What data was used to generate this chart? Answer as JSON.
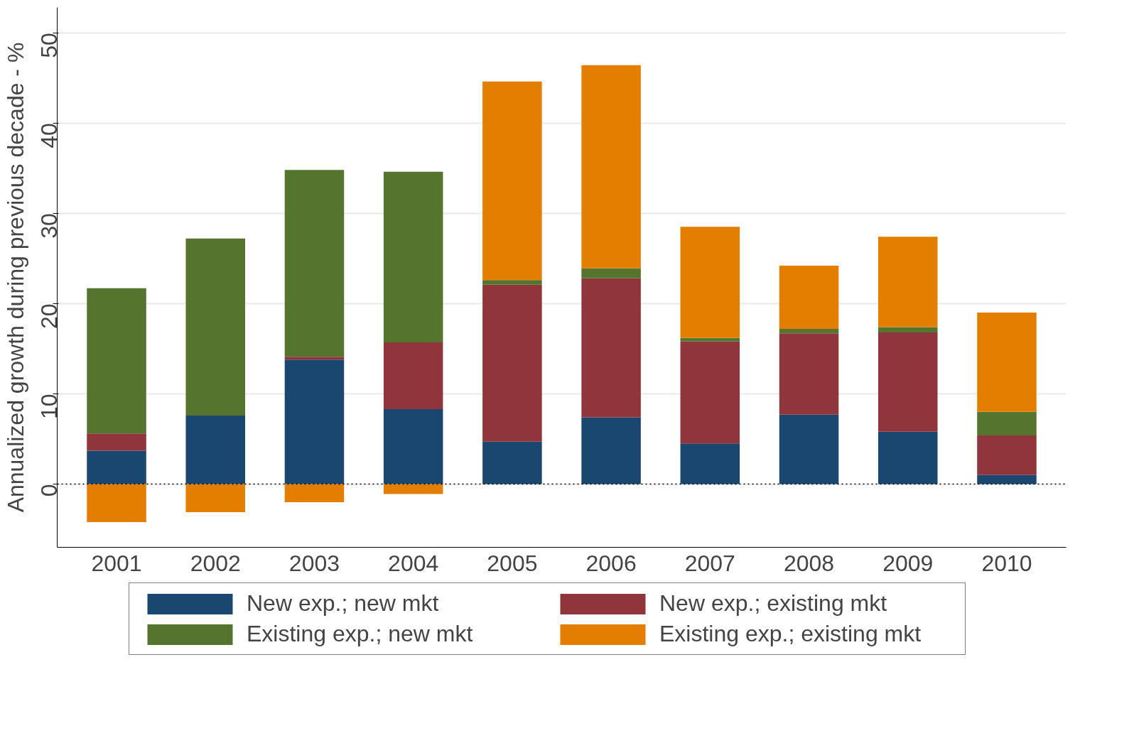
{
  "chart_data": {
    "type": "bar",
    "stacked": true,
    "ylabel": "Annualized growth during previous decade - %",
    "categories": [
      "2001",
      "2002",
      "2003",
      "2004",
      "2005",
      "2006",
      "2007",
      "2008",
      "2009",
      "2010"
    ],
    "series": [
      {
        "name": "New exp.; new mkt",
        "color": "#1a476f",
        "values": [
          3.7,
          7.6,
          13.8,
          8.3,
          4.7,
          7.4,
          4.5,
          7.7,
          5.8,
          1.0
        ]
      },
      {
        "name": "New exp.; existing mkt",
        "color": "#90353b",
        "values": [
          1.9,
          0,
          0.3,
          7.4,
          17.4,
          15.4,
          11.3,
          9.0,
          11.0,
          4.4
        ]
      },
      {
        "name": "Existing exp.; new mkt",
        "color": "#55752f",
        "values": [
          16.1,
          19.6,
          20.7,
          18.9,
          0.5,
          1.1,
          0.4,
          0.5,
          0.6,
          2.6
        ]
      },
      {
        "name": "Existing exp.; existing mkt",
        "color": "#e37e00",
        "values": [
          -4.2,
          -3.1,
          -2.0,
          -1.1,
          22.0,
          22.5,
          12.3,
          7.0,
          10.0,
          11.0
        ]
      }
    ],
    "ylim": [
      -7,
      52.8
    ],
    "yticks": [
      0,
      10,
      20,
      30,
      40,
      50
    ],
    "grid": "y",
    "legend": "bottom",
    "ref_lines": [
      {
        "axis": "y",
        "value": 0,
        "color": "#000000",
        "line_style": "dotted"
      }
    ]
  }
}
